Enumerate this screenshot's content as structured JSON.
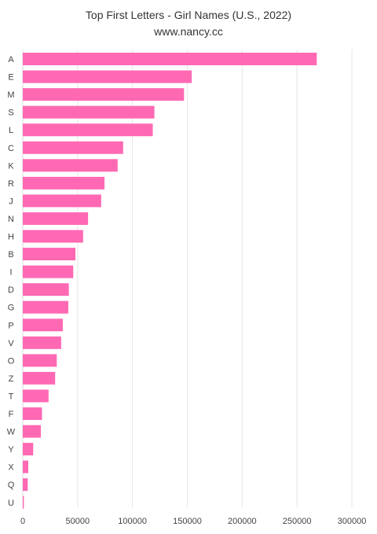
{
  "chart_data": {
    "type": "bar",
    "orientation": "horizontal",
    "title": "Top First Letters - Girl Names (U.S., 2022)",
    "subtitle": "www.nancy.cc",
    "categories": [
      "A",
      "E",
      "M",
      "S",
      "L",
      "C",
      "K",
      "R",
      "J",
      "N",
      "H",
      "B",
      "I",
      "D",
      "G",
      "P",
      "V",
      "O",
      "Z",
      "T",
      "F",
      "W",
      "Y",
      "X",
      "Q",
      "U"
    ],
    "values": [
      268000,
      154000,
      147000,
      120000,
      118500,
      91500,
      86500,
      74500,
      71500,
      59500,
      55000,
      48000,
      46000,
      42000,
      41500,
      36500,
      35000,
      31000,
      29500,
      23500,
      17500,
      16500,
      9500,
      5000,
      4500,
      1000
    ],
    "xlim": [
      0,
      300000
    ],
    "xticks": [
      0,
      50000,
      100000,
      150000,
      200000,
      250000,
      300000
    ],
    "xtick_labels": [
      "0",
      "50000",
      "100000",
      "150000",
      "200000",
      "250000",
      "300000"
    ],
    "grid": "vertical",
    "legend": "none",
    "bar_color": "#ff69b4"
  }
}
